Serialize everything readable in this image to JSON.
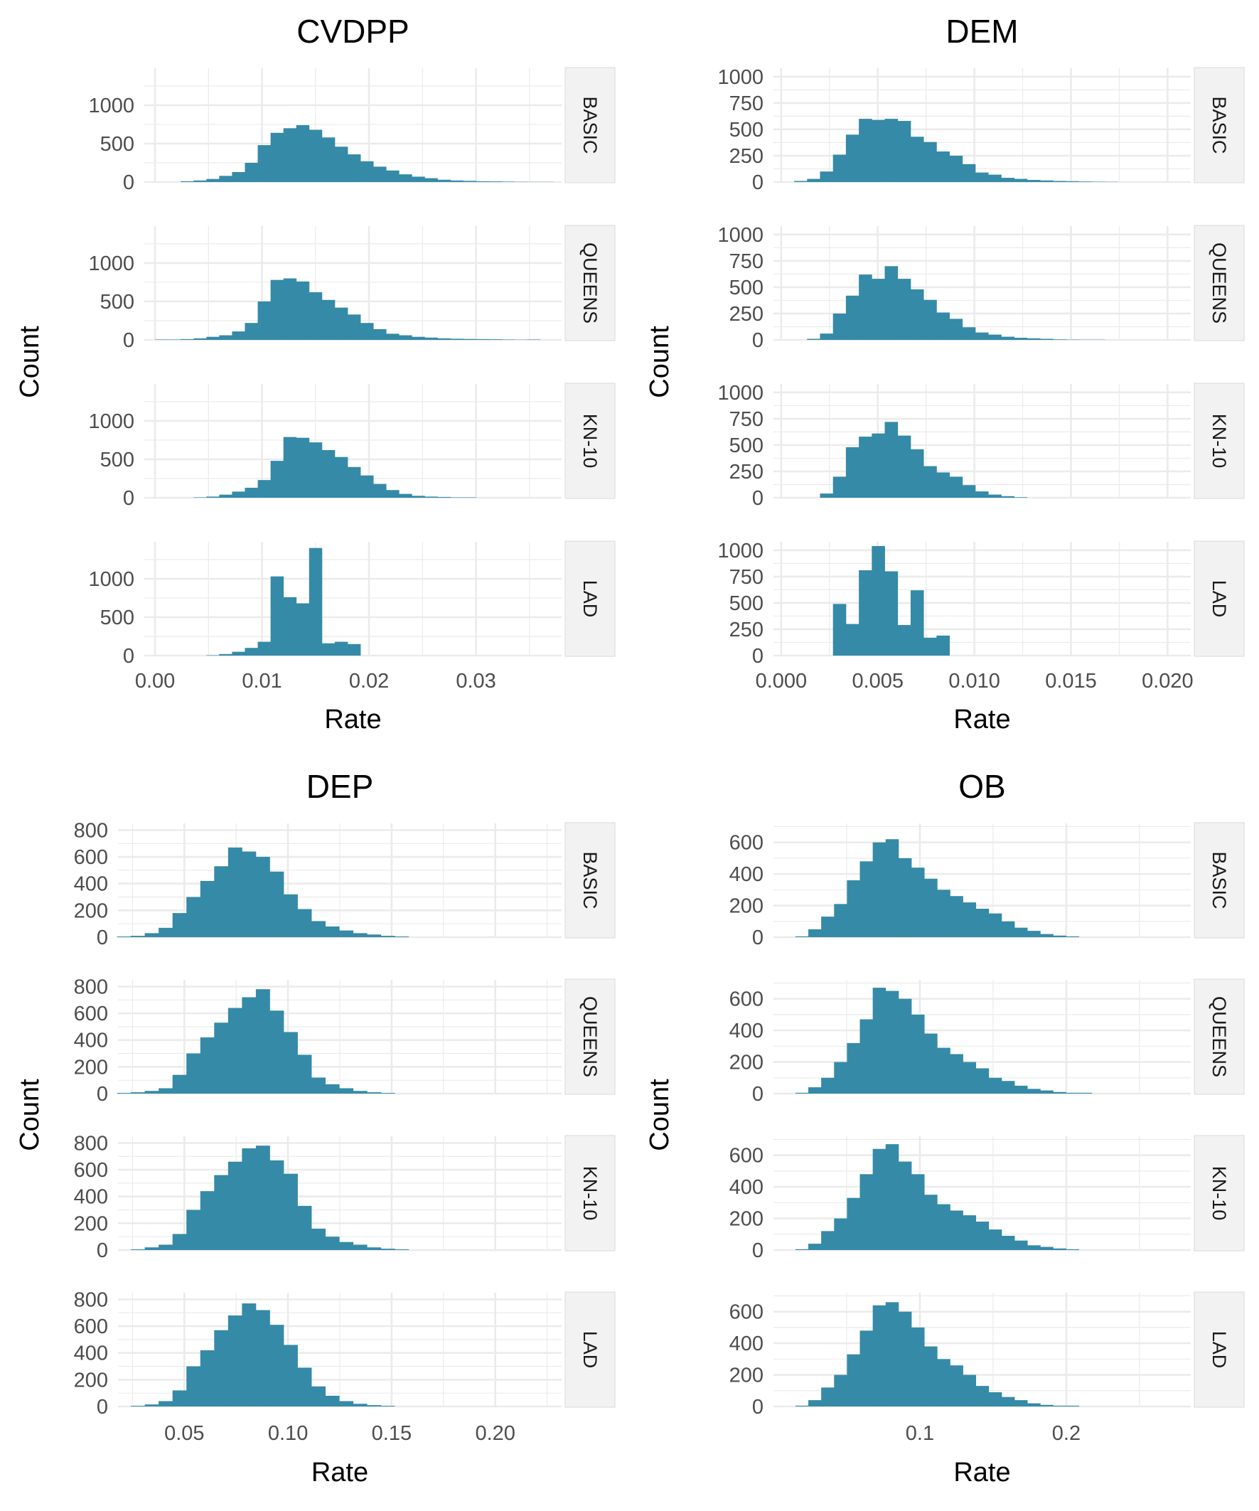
{
  "bar_color": "#358AA7",
  "grid_color": "#EBEBEB",
  "strip_color": "#F2F2F2",
  "chart_data": [
    {
      "type": "histogram",
      "title": "CVDPP",
      "xlabel": "Rate",
      "ylabel": "Count",
      "xlim": [
        -0.001,
        0.038
      ],
      "ylim": [
        0,
        1480
      ],
      "x_ticks": [
        0.0,
        0.01,
        0.02,
        0.03
      ],
      "x_tick_labels": [
        "0.00",
        "0.01",
        "0.02",
        "0.03"
      ],
      "y_ticks": [
        0,
        500,
        1000
      ],
      "y_tick_labels": [
        "0",
        "500",
        "1000"
      ],
      "bins": {
        "start": 0.0,
        "width": 0.0012
      },
      "facets": [
        {
          "label": "BASIC",
          "counts": [
            0,
            0,
            10,
            20,
            40,
            80,
            130,
            250,
            480,
            640,
            700,
            740,
            680,
            580,
            460,
            360,
            270,
            200,
            150,
            100,
            70,
            50,
            30,
            20,
            15,
            10,
            8,
            5,
            3,
            2,
            2,
            0
          ]
        },
        {
          "label": "QUEENS",
          "counts": [
            5,
            5,
            10,
            20,
            40,
            60,
            110,
            220,
            500,
            780,
            800,
            760,
            620,
            520,
            420,
            330,
            220,
            140,
            80,
            60,
            40,
            30,
            20,
            15,
            12,
            10,
            8,
            5,
            3,
            5,
            0,
            0
          ]
        },
        {
          "label": "KN-10",
          "counts": [
            0,
            0,
            0,
            5,
            15,
            40,
            80,
            130,
            230,
            480,
            790,
            780,
            720,
            620,
            530,
            400,
            290,
            180,
            100,
            50,
            25,
            15,
            10,
            5,
            5,
            0,
            0,
            0,
            0,
            0,
            0,
            0
          ]
        },
        {
          "label": "LAD",
          "counts": [
            0,
            0,
            0,
            0,
            5,
            20,
            50,
            100,
            180,
            1030,
            760,
            680,
            1400,
            160,
            180,
            150,
            0,
            0,
            0,
            0,
            0,
            0,
            0,
            0,
            0,
            0,
            0,
            0,
            0,
            0,
            0,
            0
          ]
        }
      ]
    },
    {
      "type": "histogram",
      "title": "DEM",
      "xlabel": "Rate",
      "ylabel": "Count",
      "xlim": [
        -0.0004,
        0.0212
      ],
      "ylim": [
        0,
        1080
      ],
      "x_ticks": [
        0.0,
        0.005,
        0.01,
        0.015,
        0.02
      ],
      "x_tick_labels": [
        "0.000",
        "0.005",
        "0.010",
        "0.015",
        "0.020"
      ],
      "y_ticks": [
        0,
        250,
        500,
        750,
        1000
      ],
      "y_tick_labels": [
        "0",
        "250",
        "500",
        "750",
        "1000"
      ],
      "bins": {
        "start": 0.0,
        "width": 0.00067
      },
      "facets": [
        {
          "label": "BASIC",
          "counts": [
            0,
            10,
            30,
            100,
            260,
            450,
            600,
            590,
            600,
            580,
            430,
            380,
            290,
            250,
            170,
            90,
            70,
            40,
            30,
            20,
            15,
            10,
            8,
            5,
            3,
            2,
            0,
            0,
            0,
            0,
            0,
            0
          ]
        },
        {
          "label": "QUEENS",
          "counts": [
            0,
            0,
            10,
            60,
            250,
            420,
            620,
            580,
            700,
            580,
            480,
            380,
            260,
            200,
            120,
            70,
            50,
            30,
            20,
            15,
            10,
            5,
            3,
            2,
            2,
            0,
            0,
            0,
            0,
            0,
            0,
            0
          ]
        },
        {
          "label": "KN-10",
          "counts": [
            0,
            0,
            0,
            40,
            200,
            480,
            580,
            610,
            720,
            590,
            460,
            300,
            240,
            200,
            120,
            60,
            30,
            15,
            5,
            0,
            0,
            0,
            0,
            0,
            0,
            0,
            0,
            0,
            0,
            0,
            0,
            0
          ]
        },
        {
          "label": "LAD",
          "counts": [
            0,
            0,
            0,
            0,
            490,
            300,
            810,
            1040,
            800,
            290,
            620,
            170,
            190,
            0,
            0,
            0,
            0,
            0,
            0,
            0,
            0,
            0,
            0,
            0,
            0,
            0,
            0,
            0,
            0,
            0,
            0,
            0
          ]
        }
      ]
    },
    {
      "type": "histogram",
      "title": "DEP",
      "xlabel": "Rate",
      "ylabel": "Count",
      "xlim": [
        0.018,
        0.232
      ],
      "ylim": [
        0,
        850
      ],
      "x_ticks": [
        0.05,
        0.1,
        0.15,
        0.2
      ],
      "x_tick_labels": [
        "0.05",
        "0.10",
        "0.15",
        "0.20"
      ],
      "y_ticks": [
        0,
        200,
        400,
        600,
        800
      ],
      "y_tick_labels": [
        "0",
        "200",
        "400",
        "600",
        "800"
      ],
      "bins": {
        "start": 0.0175,
        "width": 0.0067
      },
      "facets": [
        {
          "label": "BASIC",
          "counts": [
            5,
            10,
            30,
            70,
            180,
            300,
            420,
            530,
            670,
            640,
            600,
            490,
            320,
            210,
            120,
            80,
            50,
            30,
            20,
            10,
            5,
            0,
            0,
            0,
            0,
            0,
            0,
            0,
            0,
            0,
            0,
            0,
            0,
            0
          ]
        },
        {
          "label": "QUEENS",
          "counts": [
            5,
            10,
            20,
            40,
            140,
            300,
            420,
            530,
            640,
            720,
            780,
            620,
            460,
            290,
            120,
            70,
            40,
            20,
            10,
            5,
            0,
            0,
            0,
            0,
            0,
            0,
            0,
            0,
            0,
            0,
            0,
            0,
            0,
            0
          ]
        },
        {
          "label": "KN-10",
          "counts": [
            0,
            5,
            20,
            40,
            120,
            300,
            440,
            560,
            660,
            760,
            780,
            670,
            570,
            330,
            160,
            100,
            60,
            40,
            20,
            10,
            5,
            0,
            0,
            0,
            0,
            0,
            0,
            0,
            0,
            0,
            0,
            0,
            0,
            0
          ]
        },
        {
          "label": "LAD",
          "counts": [
            0,
            5,
            15,
            40,
            120,
            300,
            420,
            570,
            680,
            770,
            720,
            610,
            460,
            290,
            150,
            80,
            40,
            20,
            10,
            5,
            0,
            0,
            0,
            0,
            0,
            0,
            0,
            0,
            0,
            0,
            0,
            0,
            0,
            0
          ]
        }
      ]
    },
    {
      "type": "histogram",
      "title": "OB",
      "xlabel": "Rate",
      "ylabel": "Count",
      "xlim": [
        0.0,
        0.285
      ],
      "ylim": [
        0,
        720
      ],
      "x_ticks": [
        0.1,
        0.2
      ],
      "x_tick_labels": [
        "0.1",
        "0.2"
      ],
      "y_ticks": [
        0,
        200,
        400,
        600
      ],
      "y_tick_labels": [
        "0",
        "200",
        "400",
        "600"
      ],
      "bins": {
        "start": 0.015,
        "width": 0.0088
      },
      "facets": [
        {
          "label": "BASIC",
          "counts": [
            5,
            50,
            130,
            210,
            360,
            480,
            600,
            620,
            500,
            440,
            370,
            300,
            260,
            220,
            180,
            150,
            100,
            60,
            40,
            20,
            10,
            5,
            0,
            0,
            0,
            0,
            0,
            0,
            0,
            0,
            0,
            0
          ]
        },
        {
          "label": "QUEENS",
          "counts": [
            5,
            40,
            100,
            200,
            320,
            470,
            670,
            650,
            600,
            500,
            380,
            290,
            250,
            200,
            160,
            100,
            80,
            50,
            30,
            20,
            10,
            5,
            5,
            0,
            0,
            0,
            0,
            0,
            0,
            0,
            0,
            0
          ]
        },
        {
          "label": "KN-10",
          "counts": [
            5,
            40,
            120,
            200,
            330,
            480,
            640,
            670,
            560,
            480,
            350,
            290,
            250,
            220,
            180,
            130,
            90,
            60,
            30,
            20,
            10,
            5,
            0,
            0,
            0,
            0,
            0,
            0,
            0,
            0,
            0,
            0
          ]
        },
        {
          "label": "LAD",
          "counts": [
            5,
            40,
            120,
            200,
            330,
            480,
            640,
            660,
            600,
            500,
            380,
            300,
            260,
            200,
            130,
            90,
            60,
            40,
            20,
            10,
            5,
            5,
            0,
            0,
            0,
            0,
            0,
            0,
            0,
            0,
            0,
            0
          ]
        }
      ]
    }
  ]
}
